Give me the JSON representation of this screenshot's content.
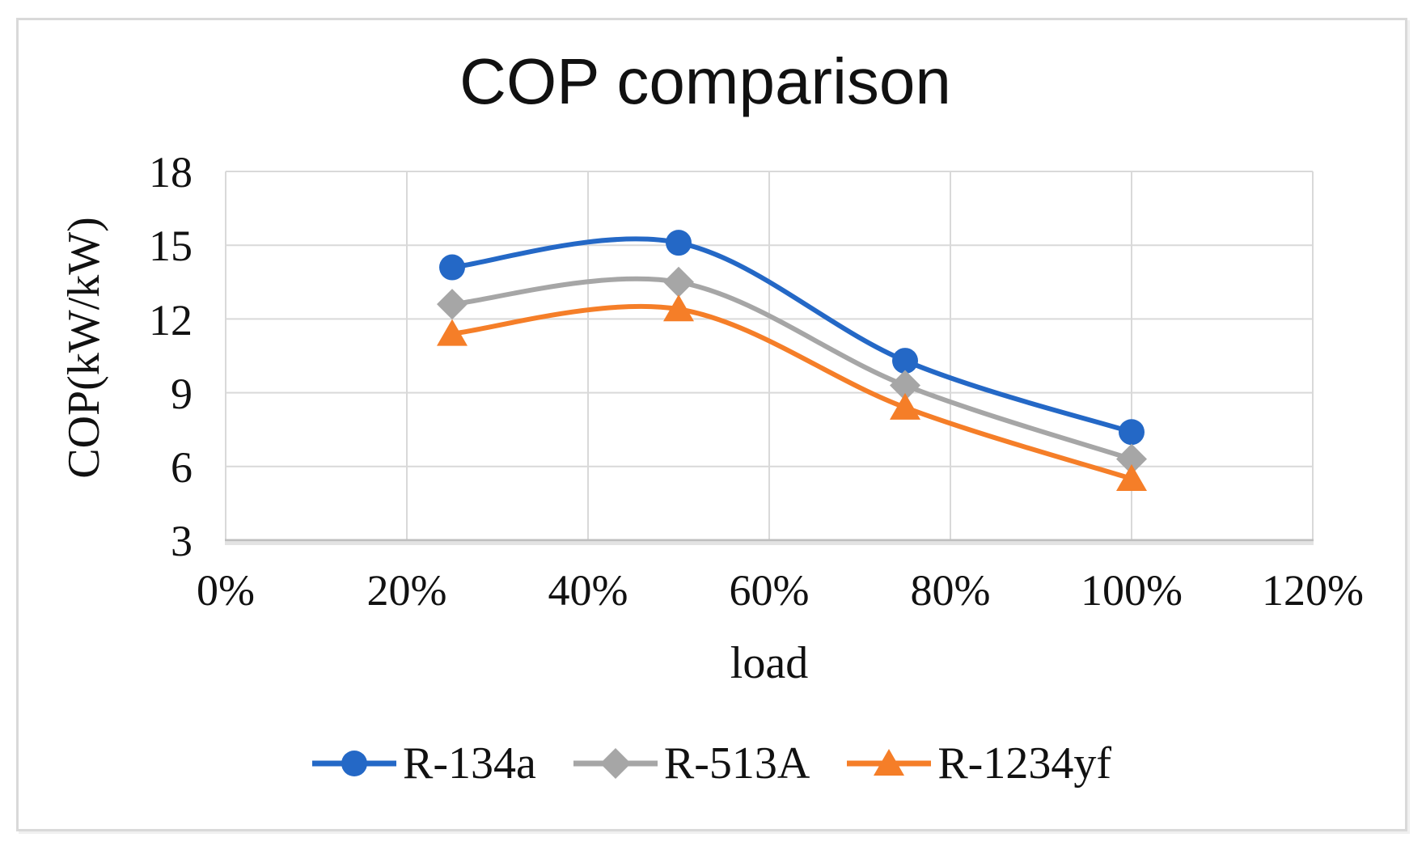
{
  "figure": {
    "type": "scientific-figure-line-chart"
  },
  "chart_data": {
    "type": "line",
    "title": "COP comparison",
    "xlabel": "load",
    "ylabel": "COP(kW/kW)",
    "smooth": true,
    "grid": true,
    "legend_position": "bottom",
    "xlim": [
      0,
      120
    ],
    "ylim": [
      3,
      18
    ],
    "x_tick_values": [
      0,
      20,
      40,
      60,
      80,
      100,
      120
    ],
    "x_tick_labels": [
      "0%",
      "20%",
      "40%",
      "60%",
      "80%",
      "100%",
      "120%"
    ],
    "y_tick_values": [
      18,
      15,
      12,
      9,
      6,
      3
    ],
    "y_tick_labels": [
      "18",
      "15",
      "12",
      "9",
      "6",
      "3"
    ],
    "x": [
      25,
      50,
      75,
      100
    ],
    "series": [
      {
        "name": "R-134a",
        "color": "#2468c6",
        "marker": "circle",
        "values": [
          14.1,
          15.1,
          10.3,
          7.4
        ]
      },
      {
        "name": "R-513A",
        "color": "#a6a6a6",
        "marker": "diamond",
        "values": [
          12.6,
          13.5,
          9.3,
          6.3
        ]
      },
      {
        "name": "R-1234yf",
        "color": "#f57e28",
        "marker": "triangle",
        "values": [
          11.4,
          12.4,
          8.4,
          5.5
        ]
      }
    ]
  },
  "colors": {
    "gridline": "#d9d9d9",
    "axis_line": "#bfbfbf",
    "axis_shadow": "#e3e3e3",
    "text": "#111111",
    "figure_border": "#d9d9d9",
    "background": "#ffffff"
  }
}
